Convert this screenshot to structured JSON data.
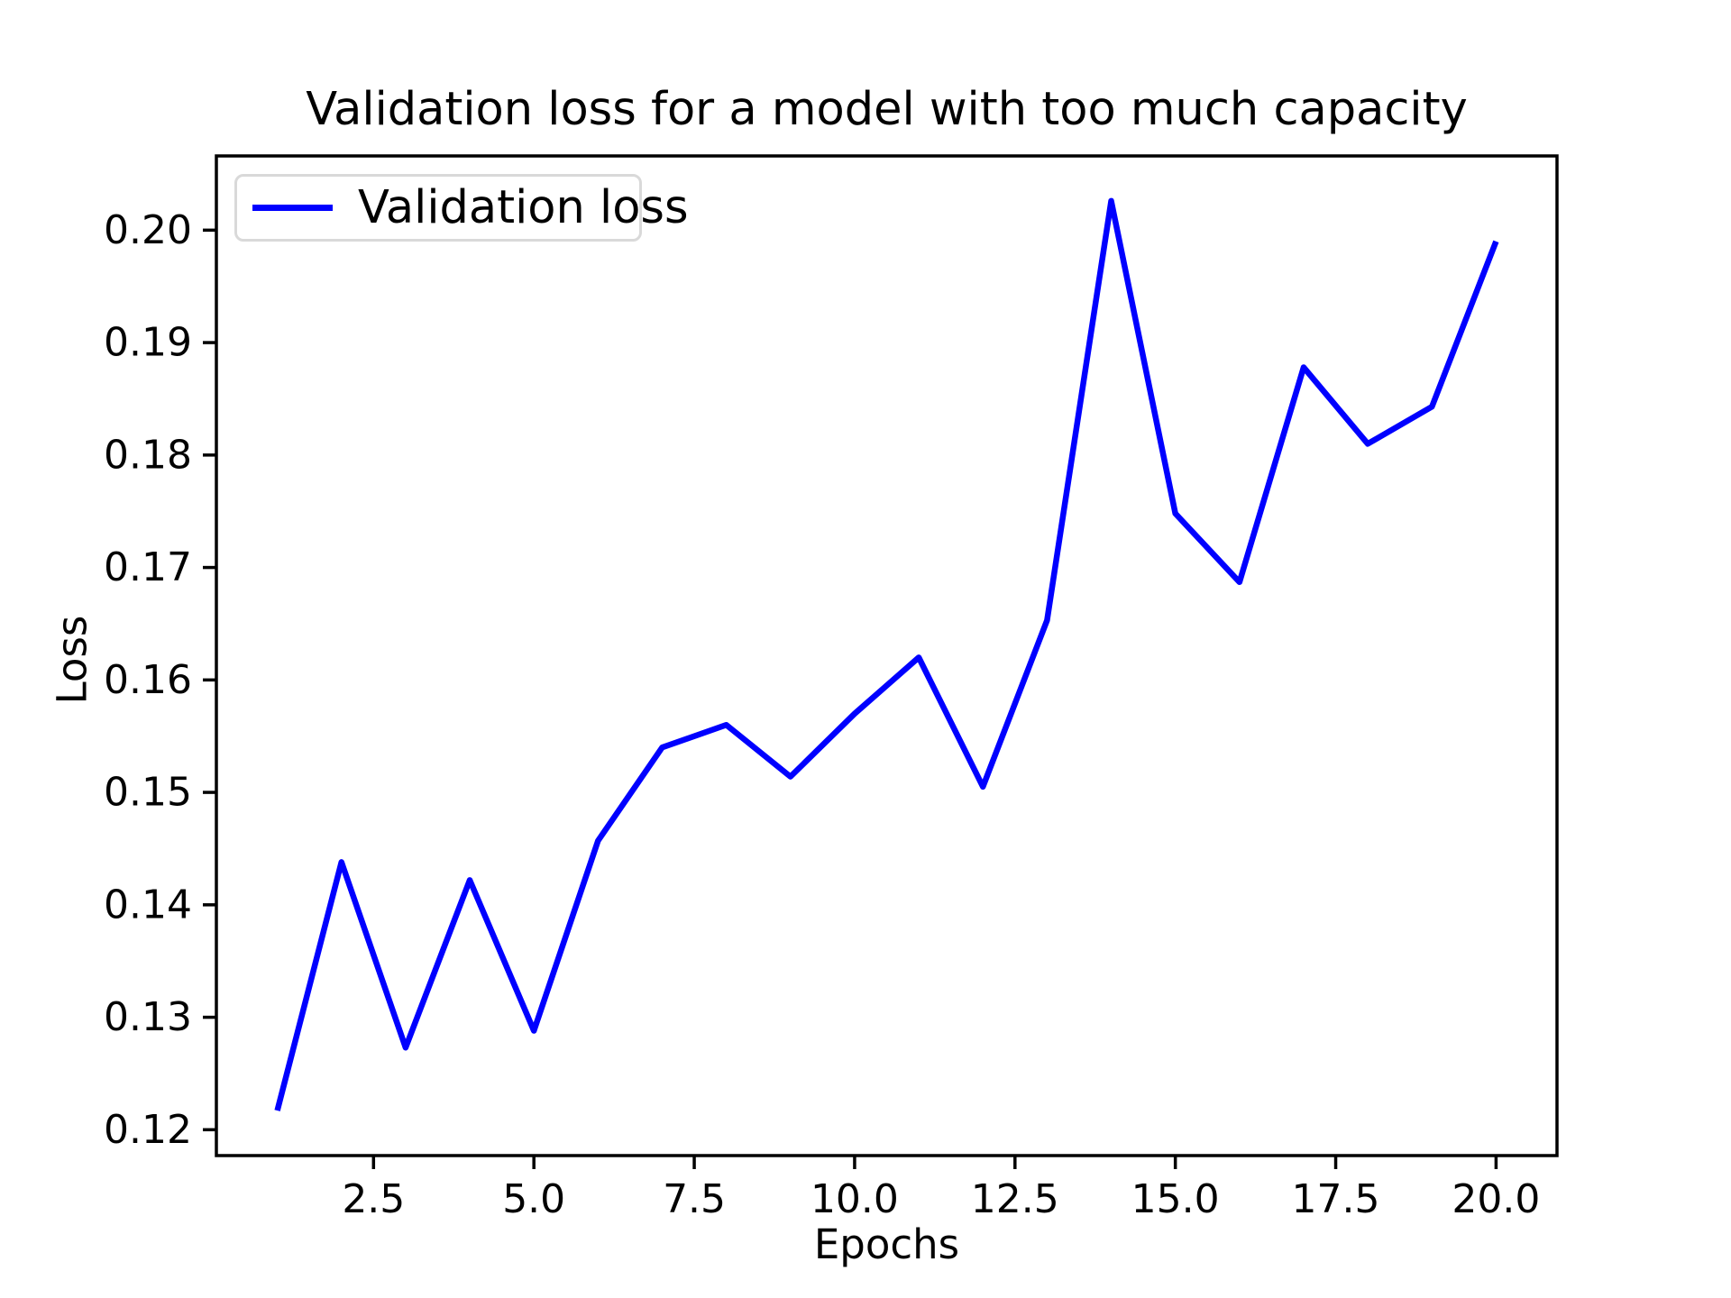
{
  "chart_data": {
    "type": "line",
    "title": "Validation loss for a model with too much capacity",
    "xlabel": "Epochs",
    "ylabel": "Loss",
    "x": [
      1,
      2,
      3,
      4,
      5,
      6,
      7,
      8,
      9,
      10,
      11,
      12,
      13,
      14,
      15,
      16,
      17,
      18,
      19,
      20
    ],
    "series": [
      {
        "name": "Validation loss",
        "color": "#0000ff",
        "values": [
          0.1217,
          0.1438,
          0.1273,
          0.1422,
          0.1288,
          0.1457,
          0.154,
          0.156,
          0.1514,
          0.157,
          0.162,
          0.1505,
          0.1653,
          0.2026,
          0.1748,
          0.1687,
          0.1878,
          0.181,
          0.1843,
          0.199
        ]
      }
    ],
    "xlim": [
      0.05,
      20.95
    ],
    "ylim": [
      0.1177,
      0.2066
    ],
    "xticks": [
      2.5,
      5.0,
      7.5,
      10.0,
      12.5,
      15.0,
      17.5,
      20.0
    ],
    "xtick_labels": [
      "2.5",
      "5.0",
      "7.5",
      "10.0",
      "12.5",
      "15.0",
      "17.5",
      "20.0"
    ],
    "yticks": [
      0.12,
      0.13,
      0.14,
      0.15,
      0.16,
      0.17,
      0.18,
      0.19,
      0.2
    ],
    "ytick_labels": [
      "0.12",
      "0.13",
      "0.14",
      "0.15",
      "0.16",
      "0.17",
      "0.18",
      "0.19",
      "0.20"
    ],
    "grid": false,
    "legend_position": "upper left",
    "axis_color": "#000000",
    "background_color": "#ffffff"
  }
}
